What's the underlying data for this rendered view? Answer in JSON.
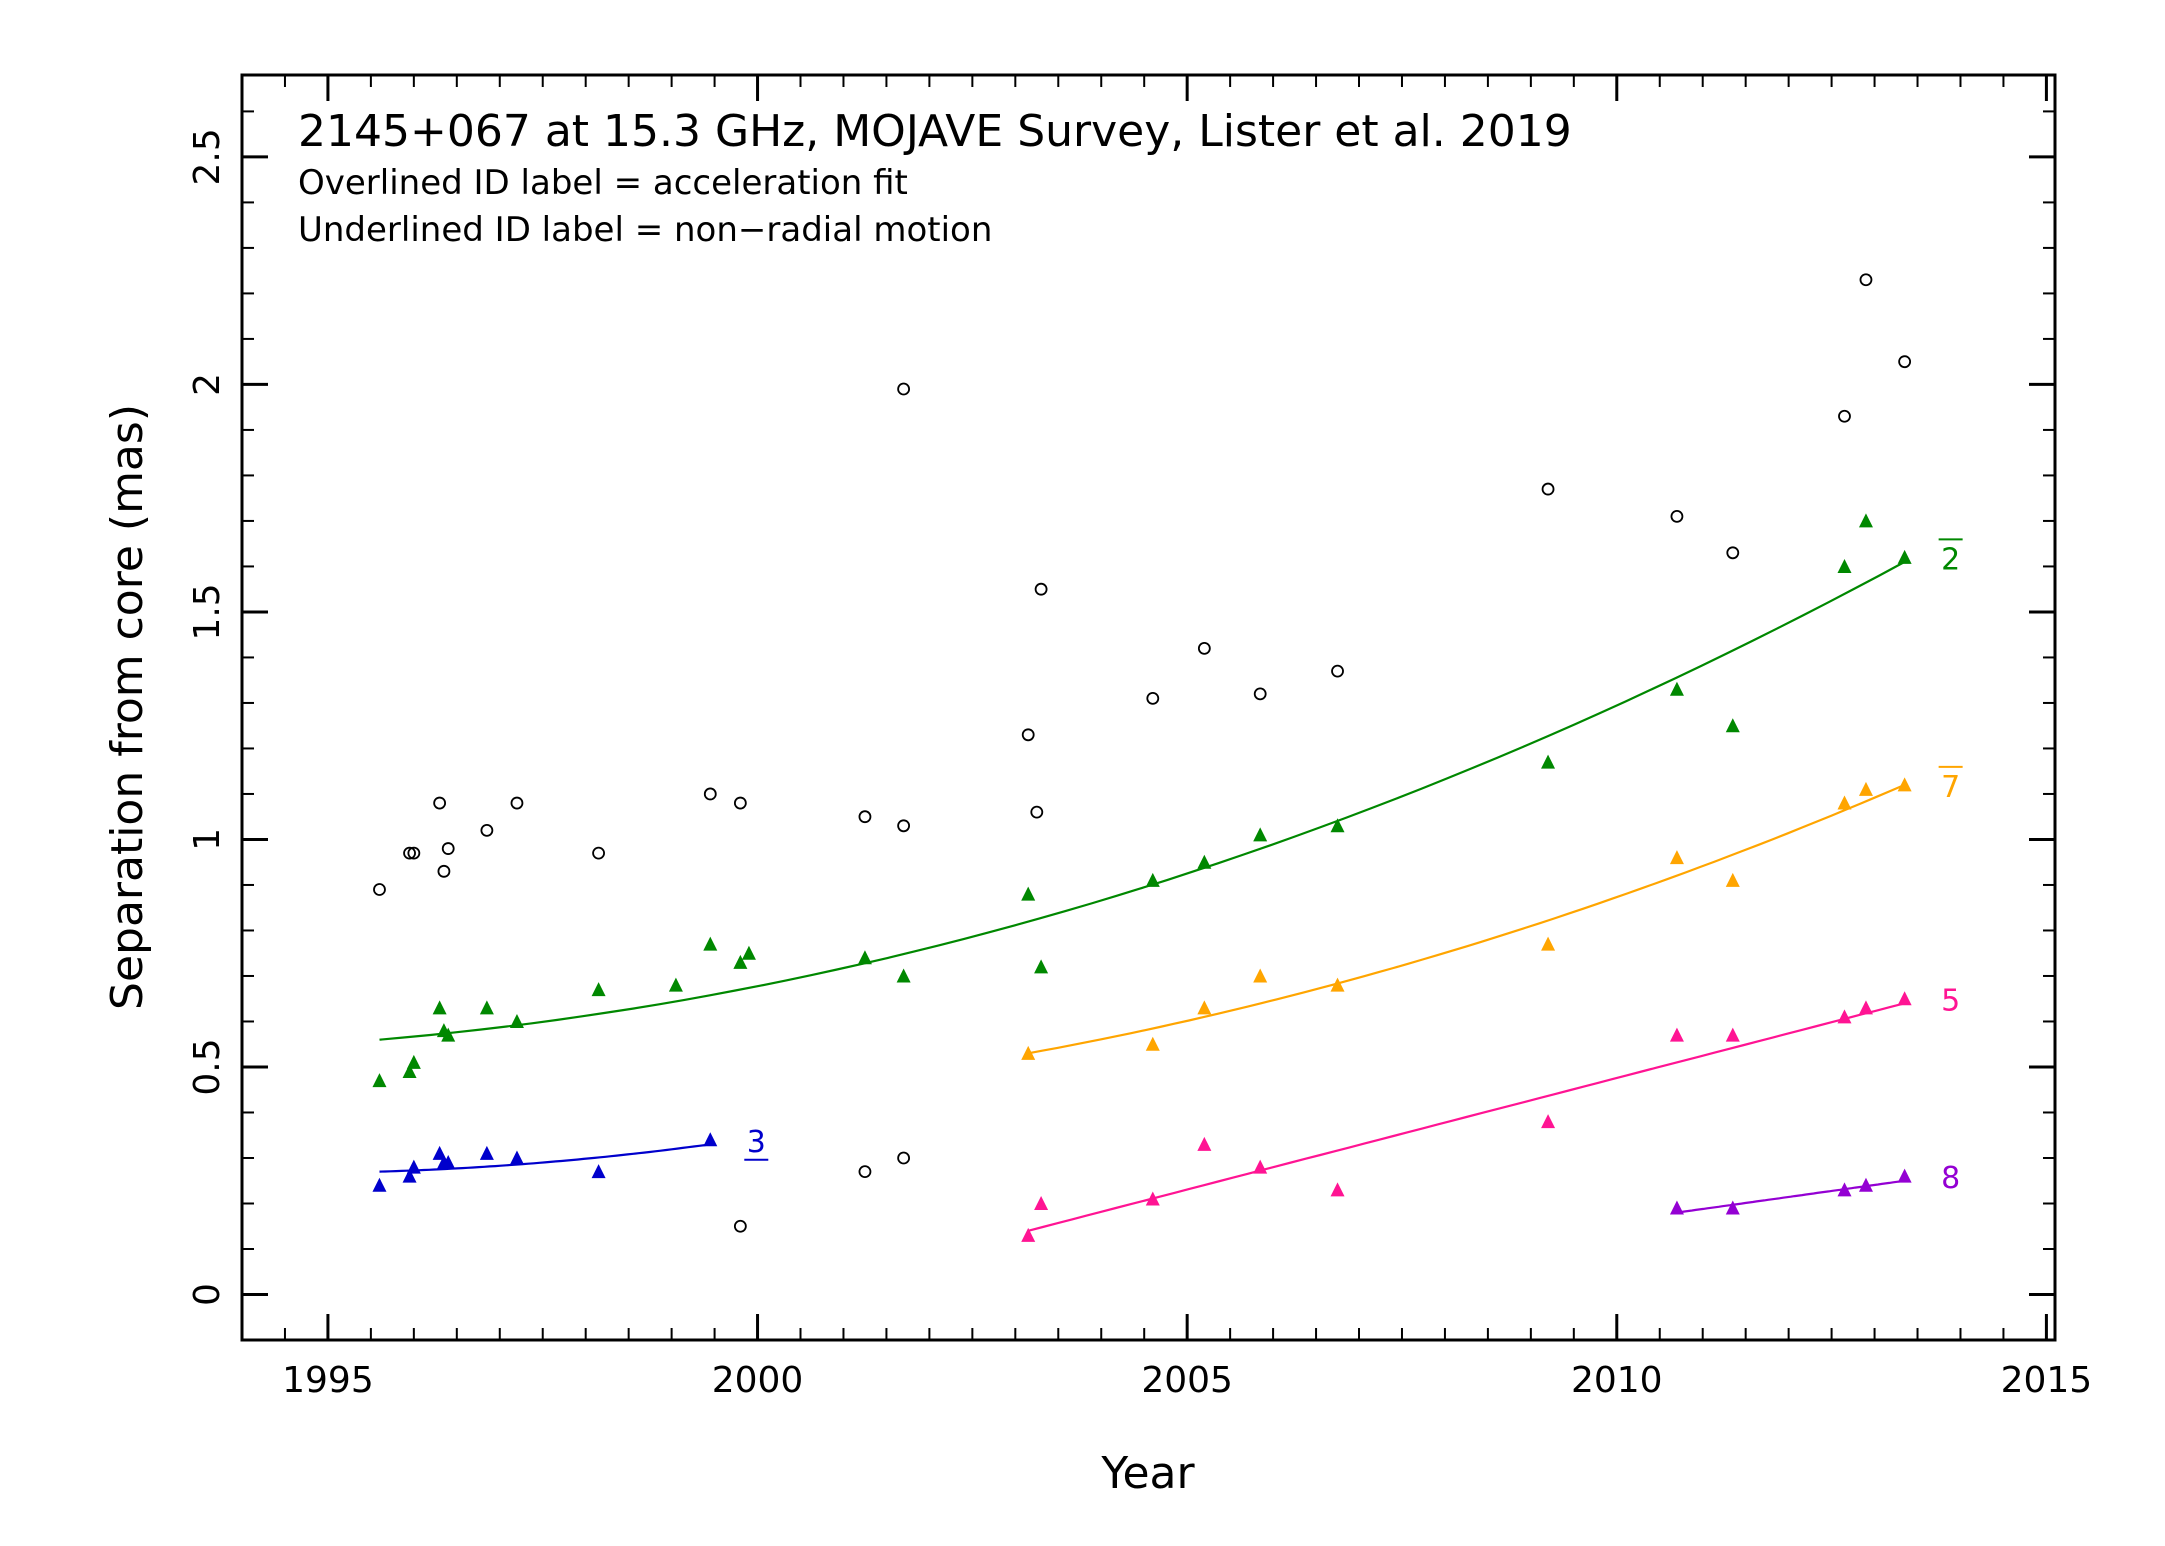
{
  "chart_data": {
    "type": "scatter",
    "title": "2145+067 at 15.3 GHz, MOJAVE Survey, Lister et al. 2019",
    "subtitle_lines": [
      "Overlined ID label = acceleration fit",
      "Underlined ID label = non−radial motion"
    ],
    "xlabel": "Year",
    "ylabel": "Separation from core (mas)",
    "xlim": [
      1994.0,
      2015.1
    ],
    "ylim": [
      -0.1,
      2.68
    ],
    "xticks": [
      1995,
      2000,
      2005,
      2010,
      2015
    ],
    "yticks": [
      0,
      0.5,
      1,
      1.5,
      2,
      2.5
    ],
    "ytick_labels": [
      "0",
      "0.5",
      "1",
      "1.5",
      "2",
      "2.5"
    ],
    "xticks_minor_step": 0.5,
    "yticks_minor_step": 0.1,
    "grid": false,
    "series": [
      {
        "id": "unassigned",
        "marker": "circle",
        "color": "#000000",
        "points": [
          [
            1995.6,
            0.89
          ],
          [
            1995.95,
            0.97
          ],
          [
            1996.0,
            0.97
          ],
          [
            1996.3,
            1.08
          ],
          [
            1996.35,
            0.93
          ],
          [
            1996.4,
            0.98
          ],
          [
            1996.85,
            1.02
          ],
          [
            1997.2,
            1.08
          ],
          [
            1998.15,
            0.97
          ],
          [
            1999.45,
            1.1
          ],
          [
            1999.8,
            1.08
          ],
          [
            1999.8,
            0.15
          ],
          [
            2001.25,
            1.05
          ],
          [
            2001.25,
            0.27
          ],
          [
            2001.7,
            1.03
          ],
          [
            2001.7,
            1.99
          ],
          [
            2001.7,
            0.3
          ],
          [
            2003.15,
            1.23
          ],
          [
            2003.25,
            1.06
          ],
          [
            2003.3,
            1.55
          ],
          [
            2004.6,
            1.31
          ],
          [
            2005.2,
            1.42
          ],
          [
            2005.85,
            1.32
          ],
          [
            2006.75,
            1.37
          ],
          [
            2009.2,
            1.77
          ],
          [
            2010.7,
            1.71
          ],
          [
            2011.35,
            1.63
          ],
          [
            2012.65,
            1.93
          ],
          [
            2012.9,
            2.23
          ],
          [
            2013.35,
            2.05
          ]
        ]
      },
      {
        "id": "2",
        "label": "2",
        "label_style": "overline",
        "marker": "triangle",
        "color": "#008800",
        "fit": {
          "kind": "quadratic",
          "x": [
            1995.6,
            2013.35
          ],
          "y": [
            0.56,
            1.61
          ],
          "mid_x": 2004.5,
          "mid_y": 0.895
        },
        "points": [
          [
            1995.6,
            0.47
          ],
          [
            1995.95,
            0.49
          ],
          [
            1996.0,
            0.51
          ],
          [
            1996.3,
            0.63
          ],
          [
            1996.35,
            0.58
          ],
          [
            1996.4,
            0.57
          ],
          [
            1996.85,
            0.63
          ],
          [
            1997.2,
            0.6
          ],
          [
            1998.15,
            0.67
          ],
          [
            1999.05,
            0.68
          ],
          [
            1999.45,
            0.77
          ],
          [
            1999.8,
            0.73
          ],
          [
            1999.9,
            0.75
          ],
          [
            2001.25,
            0.74
          ],
          [
            2001.7,
            0.7
          ],
          [
            2003.15,
            0.88
          ],
          [
            2003.3,
            0.72
          ],
          [
            2004.6,
            0.91
          ],
          [
            2005.2,
            0.95
          ],
          [
            2005.85,
            1.01
          ],
          [
            2006.75,
            1.03
          ],
          [
            2009.2,
            1.17
          ],
          [
            2010.7,
            1.33
          ],
          [
            2011.35,
            1.25
          ],
          [
            2012.65,
            1.6
          ],
          [
            2012.9,
            1.7
          ],
          [
            2013.35,
            1.62
          ]
        ]
      },
      {
        "id": "3",
        "label": "3",
        "label_style": "underline",
        "marker": "triangle",
        "color": "#0000cc",
        "fit": {
          "kind": "quadratic",
          "x": [
            1995.6,
            1999.45
          ],
          "y": [
            0.27,
            0.33
          ],
          "mid_x": 1997.5,
          "mid_y": 0.29
        },
        "points": [
          [
            1995.6,
            0.24
          ],
          [
            1995.95,
            0.26
          ],
          [
            1996.0,
            0.28
          ],
          [
            1996.3,
            0.31
          ],
          [
            1996.35,
            0.29
          ],
          [
            1996.4,
            0.29
          ],
          [
            1996.85,
            0.31
          ],
          [
            1997.2,
            0.3
          ],
          [
            1998.15,
            0.27
          ],
          [
            1999.45,
            0.34
          ]
        ]
      },
      {
        "id": "7",
        "label": "7",
        "label_style": "overline",
        "marker": "triangle",
        "color": "#ffa500",
        "fit": {
          "kind": "quadratic",
          "x": [
            2003.15,
            2013.35
          ],
          "y": [
            0.53,
            1.12
          ],
          "mid_x": 2008.25,
          "mid_y": 0.765
        },
        "points": [
          [
            2003.15,
            0.53
          ],
          [
            2004.6,
            0.55
          ],
          [
            2005.2,
            0.63
          ],
          [
            2005.85,
            0.7
          ],
          [
            2006.75,
            0.68
          ],
          [
            2009.2,
            0.77
          ],
          [
            2010.7,
            0.96
          ],
          [
            2011.35,
            0.91
          ],
          [
            2012.65,
            1.08
          ],
          [
            2012.9,
            1.11
          ],
          [
            2013.35,
            1.12
          ]
        ]
      },
      {
        "id": "5",
        "label": "5",
        "label_style": "plain",
        "marker": "triangle",
        "color": "#ff1493",
        "fit": {
          "kind": "linear",
          "x": [
            2003.15,
            2013.35
          ],
          "y": [
            0.14,
            0.64
          ]
        },
        "points": [
          [
            2003.15,
            0.13
          ],
          [
            2003.3,
            0.2
          ],
          [
            2004.6,
            0.21
          ],
          [
            2005.2,
            0.33
          ],
          [
            2005.85,
            0.28
          ],
          [
            2006.75,
            0.23
          ],
          [
            2009.2,
            0.38
          ],
          [
            2010.7,
            0.57
          ],
          [
            2011.35,
            0.57
          ],
          [
            2012.65,
            0.61
          ],
          [
            2012.9,
            0.63
          ],
          [
            2013.35,
            0.65
          ]
        ]
      },
      {
        "id": "8",
        "label": "8",
        "label_style": "plain",
        "marker": "triangle",
        "color": "#9400d3",
        "fit": {
          "kind": "linear",
          "x": [
            2010.7,
            2013.35
          ],
          "y": [
            0.18,
            0.25
          ]
        },
        "points": [
          [
            2010.7,
            0.19
          ],
          [
            2011.35,
            0.19
          ],
          [
            2012.65,
            0.23
          ],
          [
            2012.9,
            0.24
          ],
          [
            2013.35,
            0.26
          ]
        ]
      }
    ]
  }
}
